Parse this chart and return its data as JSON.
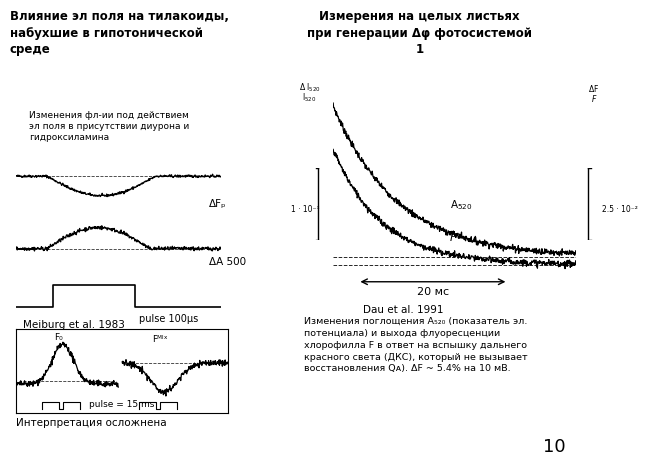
{
  "title_left": "Влияние эл поля на тилакоиды,\nнабухшие в гипотонической\nсреде",
  "title_right": "Измерения на целых листьях\nпри генерации Δφ фотосистемой\n1",
  "subtitle_left": "Изменения фл-ии под действием\nэл поля в присутствии диурона и\nгидроксиламина",
  "label_DFp": "ΔFₚ",
  "label_DA500": "ΔA 500",
  "label_pulse_top": "pulse 100μs",
  "label_meiburg": "Meiburg et al. 1983",
  "label_pulse_bottom": "pulse = 15 ms",
  "label_interp": "Интерпретация осложнена",
  "label_F0": "F₀",
  "label_FMAX": "Fᴹᴵˣ",
  "scale_left_top": "Δ I₅₂₀",
  "scale_left_bot": "I₅₂₀",
  "scale_right_top": "ΔF",
  "scale_right_bot": "F",
  "scale_left_val": "1 · 10⁻³",
  "scale_right_val": "2.5 · 10⁻²",
  "label_20ms": "20 мс",
  "label_dau": "Dau et al. 1991",
  "text_bottom_right": "Изменения поглощения А₅₂₀ (показатель эл.\nпотенциала) и выхода флуоресценции\nхлорофилла F в ответ на вспышку дальнего\nкрасного света (ДКС), который не вызывает\nвосстановления Qᴀ). ΔF ~ 5.4% на 10 мВ.",
  "page_num": "10",
  "bg_color": "#ffffff"
}
